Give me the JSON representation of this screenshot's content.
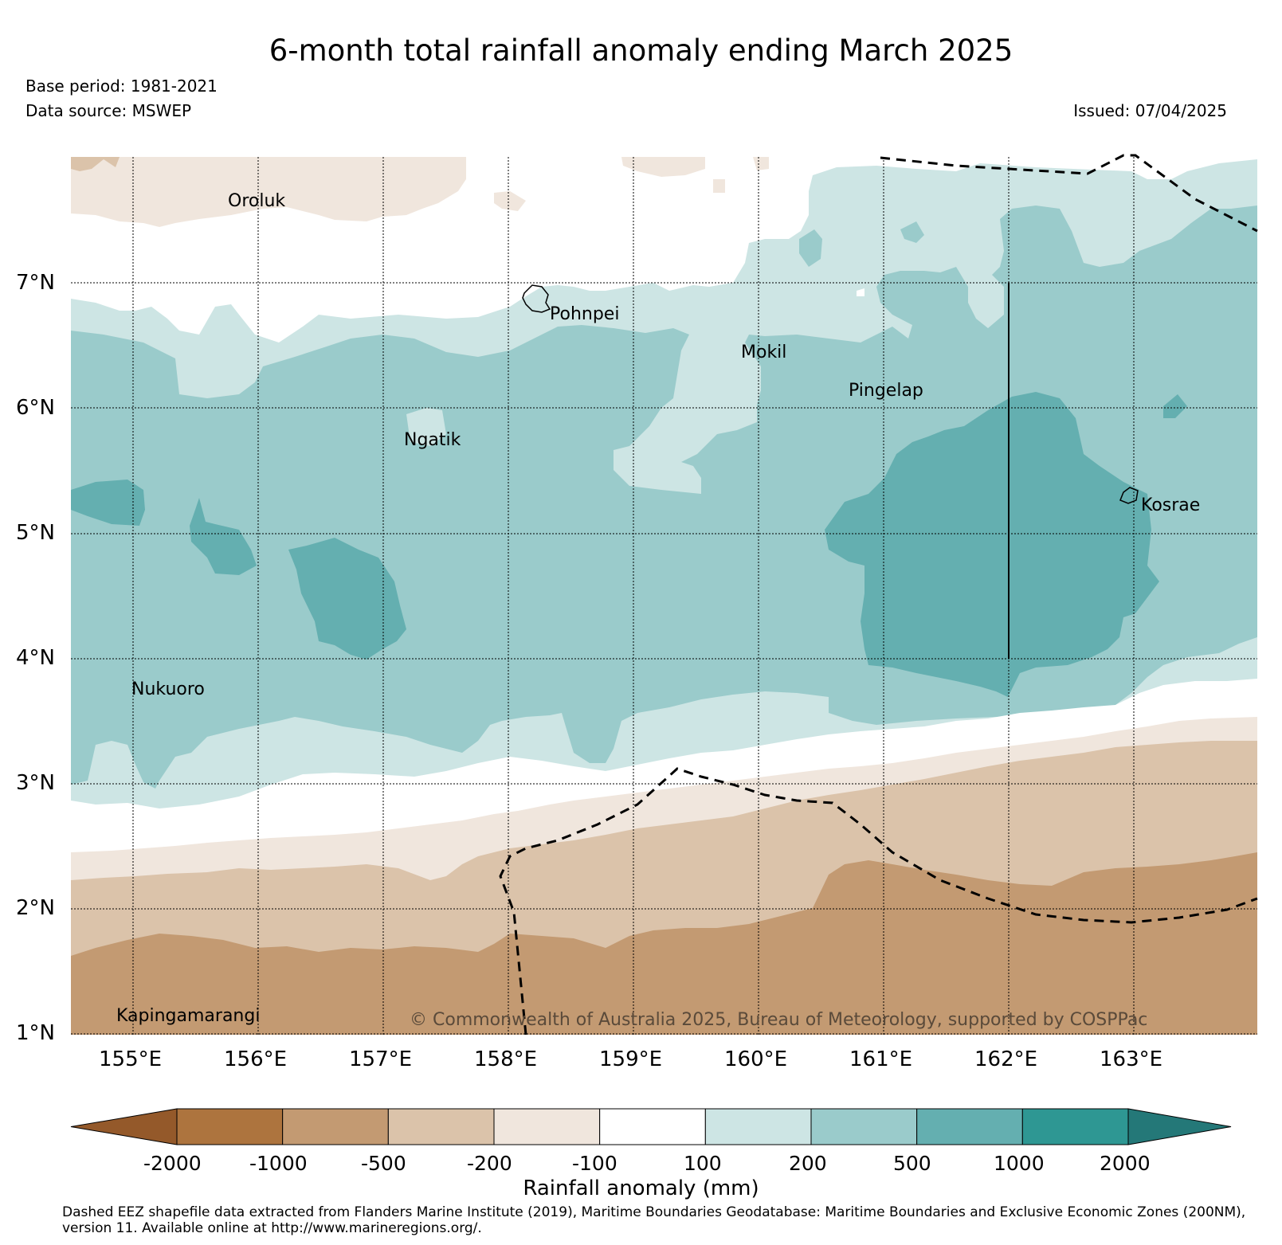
{
  "header": {
    "title": "6-month total rainfall anomaly ending March 2025",
    "base_period": "Base period: 1981-2021",
    "data_source": "Data source: MSWEP",
    "issued": "Issued: 07/04/2025"
  },
  "map": {
    "lat_labels": [
      "7°N",
      "6°N",
      "5°N",
      "4°N",
      "3°N",
      "2°N",
      "1°N"
    ],
    "lon_labels": [
      "155°E",
      "156°E",
      "157°E",
      "158°E",
      "159°E",
      "160°E",
      "161°E",
      "162°E",
      "163°E"
    ],
    "places": [
      {
        "name": "Oroluk"
      },
      {
        "name": "Pohnpei"
      },
      {
        "name": "Mokil"
      },
      {
        "name": "Pingelap"
      },
      {
        "name": "Ngatik"
      },
      {
        "name": "Kosrae"
      },
      {
        "name": "Nukuoro"
      },
      {
        "name": "Kapingamarangi"
      }
    ],
    "copyright": "© Commonwealth of Australia 2025, Bureau of Meteorology, supported by COSPPac"
  },
  "colorbar": {
    "title": "Rainfall anomaly (mm)",
    "ticks": [
      "-2000",
      "-1000",
      "-500",
      "-200",
      "-100",
      "100",
      "200",
      "500",
      "1000",
      "2000"
    ],
    "colors": [
      "#94592a",
      "#ad743e",
      "#c39a72",
      "#dbc3aa",
      "#f0e6dd",
      "#ffffff",
      "#cde5e4",
      "#9acbcb",
      "#64afb0",
      "#2e9793",
      "#247878"
    ]
  },
  "footnote": "Dashed EEZ shapefile data extracted from Flanders Marine Institute (2019), Maritime Boundaries Geodatabase: Maritime Boundaries and Exclusive Economic Zones (200NM), version 11. Available online at http://www.marineregions.org/."
}
